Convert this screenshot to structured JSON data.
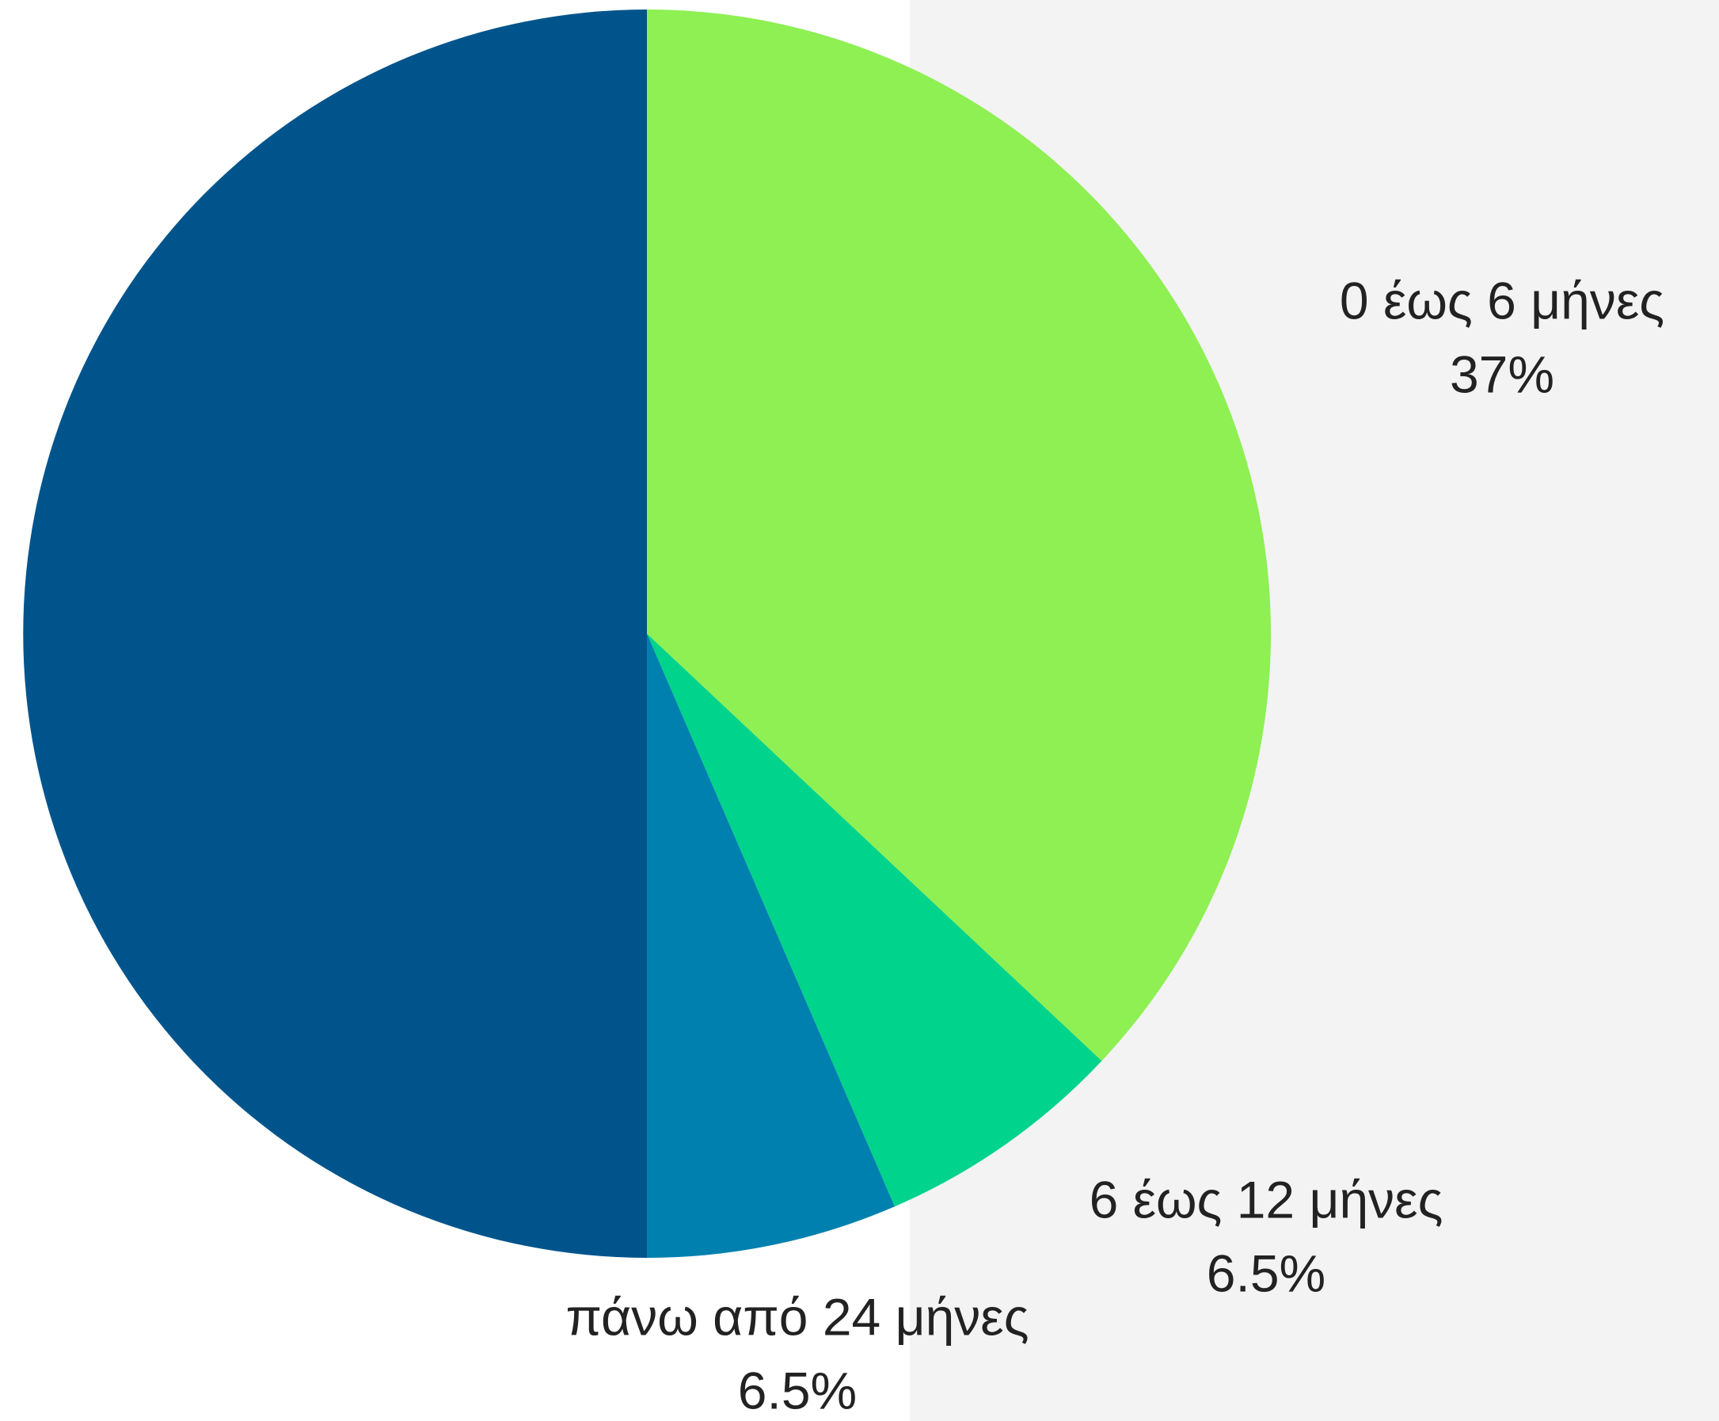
{
  "chart_data": {
    "type": "pie",
    "categories": [
      "0 έως 6 μήνες",
      "6 έως 12 μήνες",
      "πάνω από 24 μήνες",
      null
    ],
    "values": [
      37,
      6.5,
      6.5,
      50
    ],
    "value_labels": [
      "37%",
      "6.5%",
      "6.5%",
      null
    ],
    "colors": [
      "#8ef053",
      "#00d38b",
      "#0080ae",
      "#00548c"
    ]
  }
}
